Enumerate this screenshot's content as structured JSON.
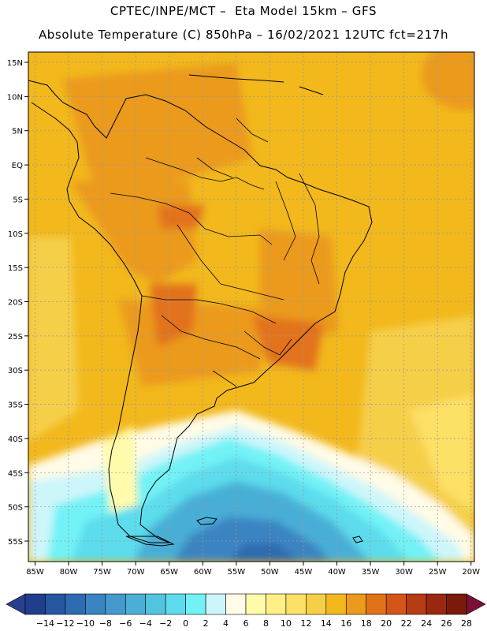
{
  "header": {
    "line1": "CPTEC/INPE/MCT –  Eta Model 15km – GFS",
    "line2": "Absolute Temperature (C) 850hPa – 16/02/2021 12UTC fct=217h"
  },
  "map": {
    "lat_labels": [
      "15N",
      "10N",
      "5N",
      "EQ",
      "5S",
      "10S",
      "15S",
      "20S",
      "25S",
      "30S",
      "35S",
      "40S",
      "45S",
      "50S",
      "55S"
    ],
    "lon_labels": [
      "85W",
      "80W",
      "75W",
      "70W",
      "65W",
      "60W",
      "55W",
      "50W",
      "45W",
      "40W",
      "35W",
      "30W",
      "25W",
      "20W"
    ],
    "lat_range": [
      -58,
      16.5
    ],
    "lon_range": [
      -86,
      -19.5
    ]
  },
  "colorbar": {
    "labels": [
      "-14",
      "-12",
      "-10",
      "-8",
      "-6",
      "-4",
      "-2",
      "0",
      "2",
      "4",
      "6",
      "8",
      "10",
      "12",
      "14",
      "16",
      "18",
      "20",
      "22",
      "24",
      "26",
      "28"
    ],
    "colors": [
      "#1f3f8c",
      "#2656a0",
      "#2e6bb0",
      "#3a84c2",
      "#4599cc",
      "#4aaed6",
      "#52c4e0",
      "#5cdcec",
      "#72f2f6",
      "#cdf6fa",
      "#fffbe6",
      "#fffbaa",
      "#fef086",
      "#fde066",
      "#f6cf48",
      "#f2b81c",
      "#eb9a1c",
      "#e2721a",
      "#d35618",
      "#b63c14",
      "#9a2810",
      "#7a1a0c"
    ],
    "under_color": "#2a3f8c",
    "over_color": "#7a1238"
  }
}
